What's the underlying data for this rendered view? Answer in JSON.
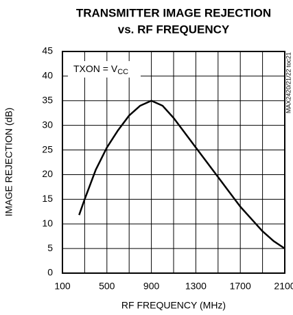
{
  "chart_data": {
    "type": "line",
    "title": [
      "TRANSMITTER IMAGE REJECTION",
      "vs. RF FREQUENCY"
    ],
    "x_label": "RF FREQUENCY (MHz)",
    "y_label": "IMAGE REJECTION (dB)",
    "annotation": {
      "text": "TXON = V",
      "subscript": "CC"
    },
    "side_label": "MAX2420/21/22 toc21",
    "x": [
      250,
      300,
      400,
      500,
      600,
      700,
      800,
      900,
      1000,
      1100,
      1200,
      1300,
      1400,
      1500,
      1600,
      1700,
      1800,
      1900,
      2000,
      2100
    ],
    "values": [
      11.8,
      15,
      21,
      25.5,
      29,
      32,
      34,
      35,
      34,
      31.5,
      28.5,
      25.5,
      22.5,
      19.5,
      16.5,
      13.5,
      11,
      8.5,
      6.5,
      5
    ],
    "color": "#000000",
    "xlim": [
      100,
      2100
    ],
    "xticks": [
      100,
      500,
      900,
      1300,
      1700,
      2100
    ],
    "xminor_ticks": [
      300,
      700,
      1100,
      1500,
      1900
    ],
    "ylim": [
      0,
      45
    ],
    "yticks": [
      0,
      5,
      10,
      15,
      20,
      25,
      30,
      35,
      40,
      45
    ],
    "grid": true
  }
}
